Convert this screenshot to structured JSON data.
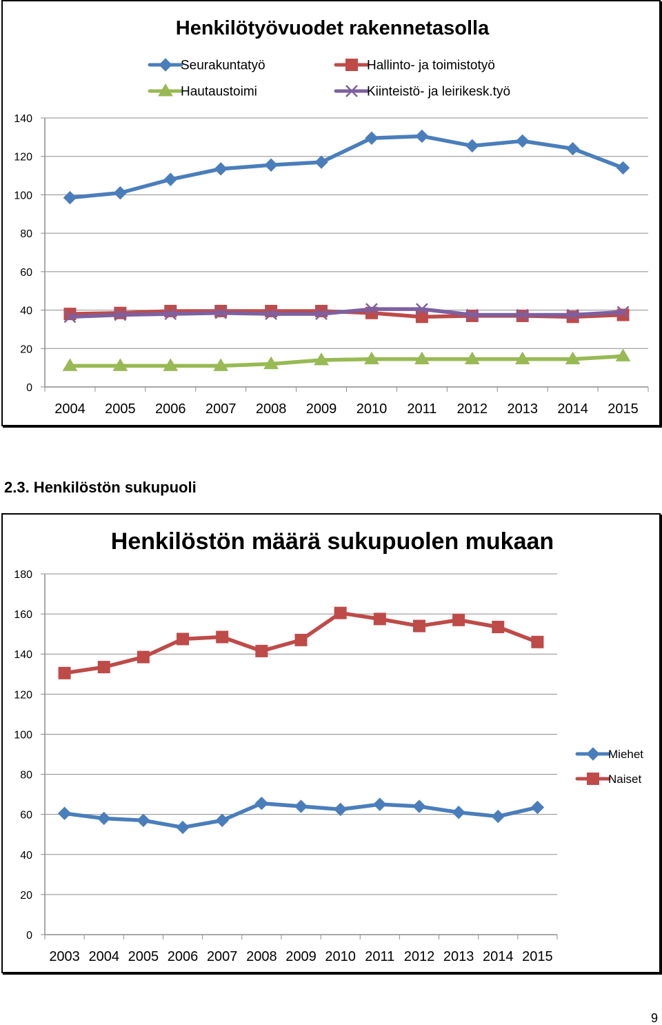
{
  "section_heading": "2.3. Henkilöstön sukupuoli",
  "page_number": "9",
  "chart_data": [
    {
      "type": "line",
      "title": "Henkilötyövuodet rakennetasolla",
      "xlabel": "",
      "ylabel": "",
      "categories": [
        "2004",
        "2005",
        "2006",
        "2007",
        "2008",
        "2009",
        "2010",
        "2011",
        "2012",
        "2013",
        "2014",
        "2015"
      ],
      "ylim": [
        0,
        140
      ],
      "yticks": [
        0,
        20,
        40,
        60,
        80,
        100,
        120,
        140
      ],
      "grid": true,
      "legend_position": "top",
      "series": [
        {
          "name": "Seurakuntatyö",
          "color": "#4a7ebb",
          "marker": "diamond",
          "values": [
            98.5,
            101,
            108,
            113.5,
            115.5,
            117,
            129.5,
            130.5,
            125.5,
            128,
            124,
            114
          ]
        },
        {
          "name": "Hallinto- ja toimistotyö",
          "color": "#be4b48",
          "marker": "square",
          "values": [
            38,
            38.5,
            39.5,
            39.5,
            39.5,
            39.5,
            38.5,
            36.5,
            37,
            37,
            36.5,
            37.5
          ]
        },
        {
          "name": "Hautaustoimi",
          "color": "#98b954",
          "marker": "triangle",
          "values": [
            11,
            11,
            11,
            11,
            12,
            14,
            14.5,
            14.5,
            14.5,
            14.5,
            14.5,
            16
          ]
        },
        {
          "name": "Kiinteistö- ja leirikesk.työ",
          "color": "#7d60a0",
          "marker": "x",
          "values": [
            36.5,
            37.5,
            38,
            38.5,
            38,
            38,
            40.5,
            40.5,
            37.5,
            37.5,
            37.5,
            39
          ]
        }
      ]
    },
    {
      "type": "line",
      "title": "Henkilöstön määrä sukupuolen mukaan",
      "xlabel": "",
      "ylabel": "",
      "categories": [
        "2003",
        "2004",
        "2005",
        "2006",
        "2007",
        "2008",
        "2009",
        "2010",
        "2011",
        "2012",
        "2013",
        "2014",
        "2015"
      ],
      "ylim": [
        0,
        180
      ],
      "yticks": [
        0,
        20,
        40,
        60,
        80,
        100,
        120,
        140,
        160,
        180
      ],
      "grid": true,
      "legend_position": "right",
      "series": [
        {
          "name": "Miehet",
          "color": "#4a7ebb",
          "marker": "diamond",
          "values": [
            60.5,
            58,
            57,
            53.5,
            57,
            65.5,
            64,
            62.5,
            65,
            64,
            61,
            59,
            63.5
          ]
        },
        {
          "name": "Naiset",
          "color": "#be4b48",
          "marker": "square",
          "values": [
            130.5,
            133.5,
            138.5,
            147.5,
            148.5,
            141.5,
            147,
            160.5,
            157.5,
            154,
            157,
            153.5,
            146
          ]
        }
      ]
    }
  ]
}
